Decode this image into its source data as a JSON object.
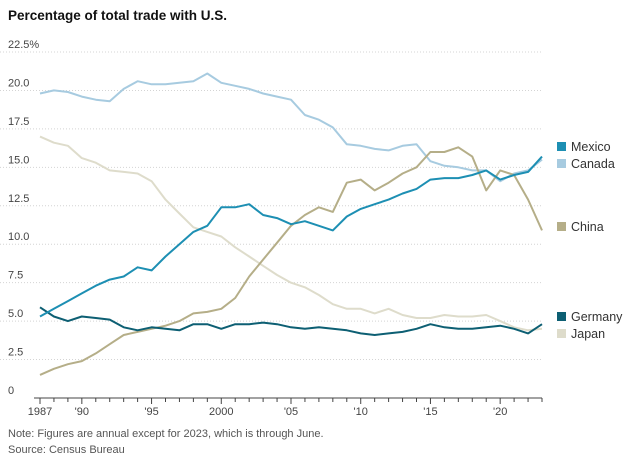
{
  "chart_data": {
    "type": "line",
    "title": "Percentage of total trade with U.S.",
    "note": "Note: Figures are annual except for 2023, which is through June.",
    "source": "Source: Census Bureau",
    "xlabel": "",
    "ylabel": "",
    "ylim": [
      0,
      22.5
    ],
    "xlim": [
      1987,
      2023
    ],
    "y_ticks": [
      {
        "value": 22.5,
        "label": "22.5%"
      },
      {
        "value": 20.0,
        "label": "20.0"
      },
      {
        "value": 17.5,
        "label": "17.5"
      },
      {
        "value": 15.0,
        "label": "15.0"
      },
      {
        "value": 12.5,
        "label": "12.5"
      },
      {
        "value": 10.0,
        "label": "10.0"
      },
      {
        "value": 7.5,
        "label": "7.5"
      },
      {
        "value": 5.0,
        "label": "5.0"
      },
      {
        "value": 2.5,
        "label": "2.5"
      },
      {
        "value": 0,
        "label": "0"
      }
    ],
    "x_ticks": [
      {
        "value": 1987,
        "label": "1987"
      },
      {
        "value": 1990,
        "label": "'90"
      },
      {
        "value": 1995,
        "label": "'95"
      },
      {
        "value": 2000,
        "label": "2000"
      },
      {
        "value": 2005,
        "label": "'05"
      },
      {
        "value": 2010,
        "label": "'10"
      },
      {
        "value": 2015,
        "label": "'15"
      },
      {
        "value": 2020,
        "label": "'20"
      }
    ],
    "x": [
      1987,
      1988,
      1989,
      1990,
      1991,
      1992,
      1993,
      1994,
      1995,
      1996,
      1997,
      1998,
      1999,
      2000,
      2001,
      2002,
      2003,
      2004,
      2005,
      2006,
      2007,
      2008,
      2009,
      2010,
      2011,
      2012,
      2013,
      2014,
      2015,
      2016,
      2017,
      2018,
      2019,
      2020,
      2021,
      2022,
      2023
    ],
    "series": [
      {
        "name": "Mexico",
        "color": "#1d8fb3",
        "values": [
          5.3,
          5.8,
          6.3,
          6.8,
          7.3,
          7.7,
          7.9,
          8.5,
          8.3,
          9.2,
          10.0,
          10.8,
          11.2,
          12.4,
          12.4,
          12.6,
          11.9,
          11.7,
          11.3,
          11.5,
          11.2,
          10.9,
          11.8,
          12.3,
          12.6,
          12.9,
          13.3,
          13.6,
          14.2,
          14.3,
          14.3,
          14.5,
          14.8,
          14.2,
          14.5,
          14.7,
          15.7
        ]
      },
      {
        "name": "Canada",
        "color": "#a7cbe0",
        "values": [
          19.8,
          20.0,
          19.9,
          19.6,
          19.4,
          19.3,
          20.1,
          20.6,
          20.4,
          20.4,
          20.5,
          20.6,
          21.1,
          20.5,
          20.3,
          20.1,
          19.8,
          19.6,
          19.4,
          18.4,
          18.1,
          17.6,
          16.5,
          16.4,
          16.2,
          16.1,
          16.4,
          16.5,
          15.4,
          15.1,
          15.0,
          14.8,
          14.8,
          14.1,
          14.6,
          14.8,
          15.5
        ]
      },
      {
        "name": "China",
        "color": "#b5ae88",
        "values": [
          1.5,
          1.9,
          2.2,
          2.4,
          2.9,
          3.5,
          4.1,
          4.3,
          4.5,
          4.7,
          5.0,
          5.5,
          5.6,
          5.8,
          6.5,
          7.9,
          9.0,
          10.1,
          11.2,
          11.9,
          12.4,
          12.1,
          14.0,
          14.2,
          13.5,
          14.0,
          14.6,
          15.0,
          16.0,
          16.0,
          16.3,
          15.7,
          13.5,
          14.8,
          14.5,
          12.9,
          10.9
        ]
      },
      {
        "name": "Germany",
        "color": "#0d5f73",
        "values": [
          5.9,
          5.3,
          5.0,
          5.3,
          5.2,
          5.1,
          4.6,
          4.4,
          4.6,
          4.5,
          4.4,
          4.8,
          4.8,
          4.5,
          4.8,
          4.8,
          4.9,
          4.8,
          4.6,
          4.5,
          4.6,
          4.5,
          4.4,
          4.2,
          4.1,
          4.2,
          4.3,
          4.5,
          4.8,
          4.6,
          4.5,
          4.5,
          4.6,
          4.7,
          4.5,
          4.2,
          4.8
        ]
      },
      {
        "name": "Japan",
        "color": "#dedccb",
        "values": [
          17.0,
          16.6,
          16.4,
          15.6,
          15.3,
          14.8,
          14.7,
          14.6,
          14.1,
          12.9,
          12.0,
          11.1,
          10.8,
          10.5,
          9.8,
          9.2,
          8.6,
          8.0,
          7.5,
          7.2,
          6.7,
          6.1,
          5.8,
          5.8,
          5.5,
          5.8,
          5.4,
          5.2,
          5.2,
          5.4,
          5.3,
          5.3,
          5.4,
          5.0,
          4.6,
          4.4,
          4.5
        ]
      }
    ],
    "legend": [
      {
        "name": "Mexico",
        "color": "#1d8fb3"
      },
      {
        "name": "Canada",
        "color": "#a7cbe0"
      },
      {
        "name": "China",
        "color": "#b5ae88"
      },
      {
        "name": "Germany",
        "color": "#0d5f73"
      },
      {
        "name": "Japan",
        "color": "#dedccb"
      }
    ]
  }
}
